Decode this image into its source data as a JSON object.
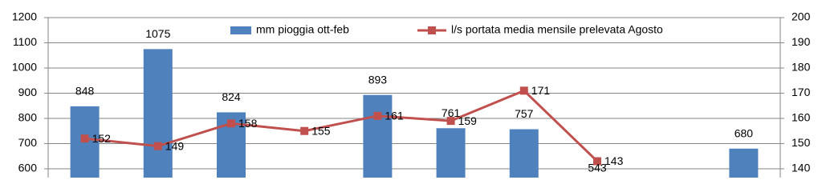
{
  "chart_data": {
    "type": "bar-line",
    "categories": [
      null,
      null,
      null,
      null,
      null,
      null,
      null,
      null,
      null,
      null
    ],
    "series": [
      {
        "name": "mm pioggia ott-feb",
        "type": "bar",
        "color": "#4f81bd",
        "values": [
          848,
          1075,
          824,
          null,
          893,
          761,
          757,
          543,
          null,
          680
        ]
      },
      {
        "name": "l/s portata media mensile prelevata Agosto",
        "type": "line",
        "axis": "y2",
        "color": "#c0504d",
        "values": [
          152,
          149,
          158,
          155,
          161,
          159,
          171,
          143,
          null,
          null
        ]
      }
    ],
    "ylim": [
      565,
      1200
    ],
    "yticks": [
      600,
      700,
      800,
      900,
      1000,
      1100,
      1200
    ],
    "y2lim": [
      136.5,
      200
    ],
    "y2ticks": [
      140,
      150,
      160,
      170,
      180,
      190,
      200
    ],
    "grid": true,
    "legend": "top"
  }
}
